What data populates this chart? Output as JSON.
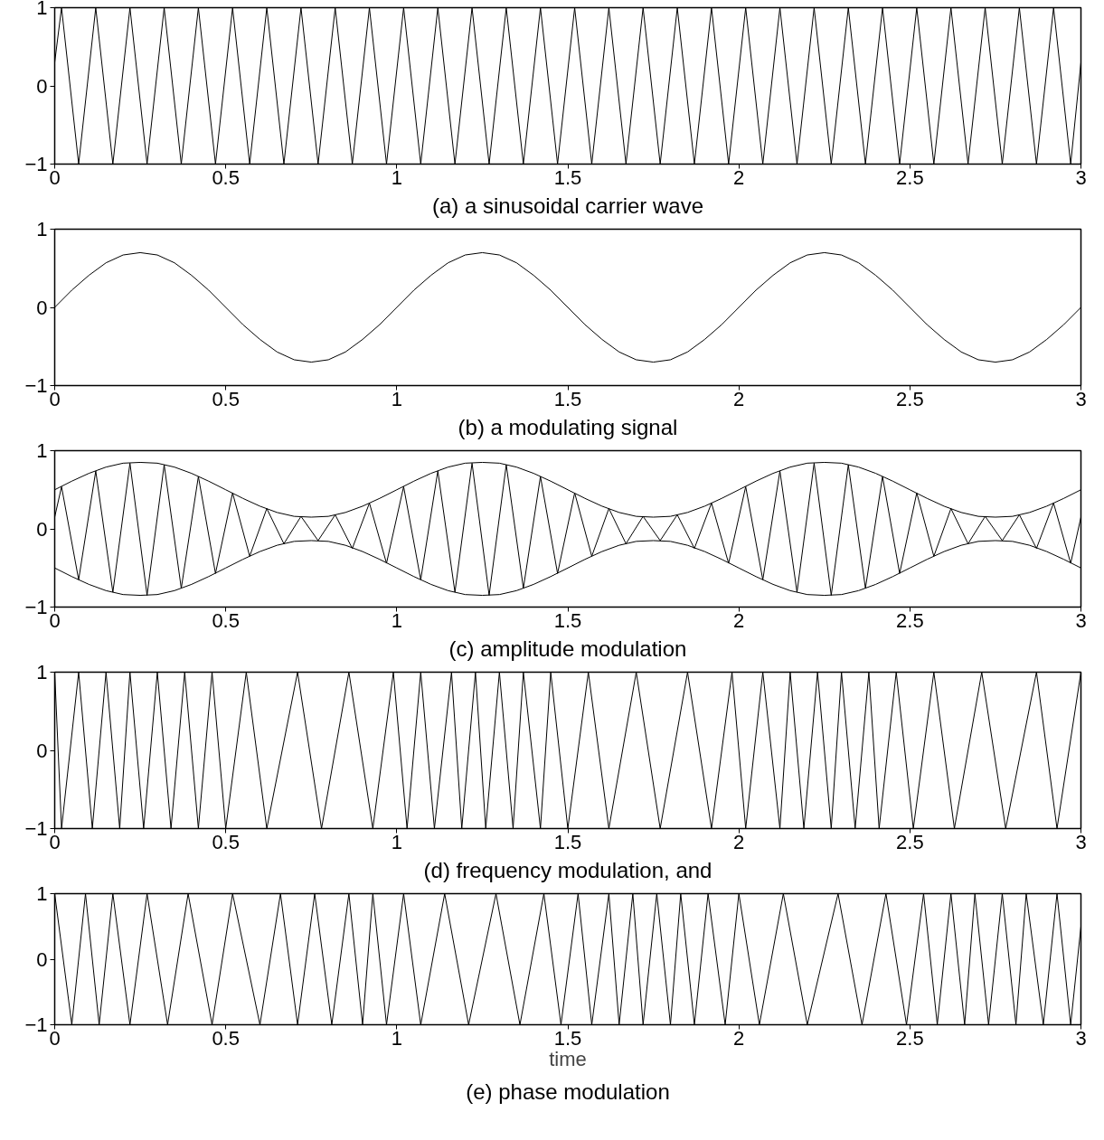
{
  "chart_data": [
    {
      "type": "line",
      "title": "(a) a sinusoidal carrier wave",
      "xlim": [
        0,
        3
      ],
      "xticks": [
        0,
        0.5,
        1,
        1.5,
        2,
        2.5,
        3
      ],
      "ylim": [
        -1,
        1
      ],
      "yticks": [
        -1,
        0,
        1
      ],
      "series": [
        {
          "color": "#000000",
          "x": [
            0,
            0.02,
            0.07,
            0.12,
            0.17,
            0.22,
            0.27,
            0.32,
            0.37,
            0.42,
            0.47,
            0.52,
            0.57,
            0.62,
            0.67,
            0.72,
            0.77,
            0.82,
            0.87,
            0.92,
            0.97,
            1.02,
            1.07,
            1.12,
            1.17,
            1.22,
            1.27,
            1.32,
            1.37,
            1.42,
            1.47,
            1.52,
            1.57,
            1.62,
            1.67,
            1.72,
            1.77,
            1.82,
            1.87,
            1.92,
            1.97,
            2.02,
            2.07,
            2.12,
            2.17,
            2.22,
            2.27,
            2.32,
            2.37,
            2.42,
            2.47,
            2.52,
            2.57,
            2.62,
            2.67,
            2.72,
            2.77,
            2.82,
            2.87,
            2.92,
            2.97,
            3
          ],
          "values": [
            0.3,
            1,
            -1,
            1,
            -1,
            1,
            -1,
            1,
            -1,
            1,
            -1,
            1,
            -1,
            1,
            -1,
            1,
            -1,
            1,
            -1,
            1,
            -1,
            1,
            -1,
            1,
            -1,
            1,
            -1,
            1,
            -1,
            1,
            -1,
            1,
            -1,
            1,
            -1,
            1,
            -1,
            1,
            -1,
            1,
            -1,
            1,
            -1,
            1,
            -1,
            1,
            -1,
            1,
            -1,
            1,
            -1,
            1,
            -1,
            1,
            -1,
            1,
            -1,
            1,
            -1,
            1,
            -1,
            0.3
          ]
        }
      ]
    },
    {
      "type": "line",
      "title": "(b) a modulating signal",
      "xlim": [
        0,
        3
      ],
      "xticks": [
        0,
        0.5,
        1,
        1.5,
        2,
        2.5,
        3
      ],
      "ylim": [
        -1,
        1
      ],
      "yticks": [
        -1,
        0,
        1
      ],
      "series": [
        {
          "color": "#000000",
          "x": [
            0,
            0.05,
            0.1,
            0.15,
            0.2,
            0.25,
            0.3,
            0.35,
            0.4,
            0.45,
            0.5,
            0.55,
            0.6,
            0.65,
            0.7,
            0.75,
            0.8,
            0.85,
            0.9,
            0.95,
            1,
            1.05,
            1.1,
            1.15,
            1.2,
            1.25,
            1.3,
            1.35,
            1.4,
            1.45,
            1.5,
            1.55,
            1.6,
            1.65,
            1.7,
            1.75,
            1.8,
            1.85,
            1.9,
            1.95,
            2,
            2.05,
            2.1,
            2.15,
            2.2,
            2.25,
            2.3,
            2.35,
            2.4,
            2.45,
            2.5,
            2.55,
            2.6,
            2.65,
            2.7,
            2.75,
            2.8,
            2.85,
            2.9,
            2.95,
            3
          ],
          "values": [
            0,
            0.22,
            0.41,
            0.57,
            0.67,
            0.7,
            0.67,
            0.57,
            0.41,
            0.22,
            0,
            -0.22,
            -0.41,
            -0.57,
            -0.67,
            -0.7,
            -0.67,
            -0.57,
            -0.41,
            -0.22,
            0,
            0.22,
            0.41,
            0.57,
            0.67,
            0.7,
            0.67,
            0.57,
            0.41,
            0.22,
            0,
            -0.22,
            -0.41,
            -0.57,
            -0.67,
            -0.7,
            -0.67,
            -0.57,
            -0.41,
            -0.22,
            0,
            0.22,
            0.41,
            0.57,
            0.67,
            0.7,
            0.67,
            0.57,
            0.41,
            0.22,
            0,
            -0.22,
            -0.41,
            -0.57,
            -0.67,
            -0.7,
            -0.67,
            -0.57,
            -0.41,
            -0.22,
            0
          ]
        }
      ]
    },
    {
      "type": "line",
      "title": "(c) amplitude modulation",
      "xlim": [
        0,
        3
      ],
      "xticks": [
        0,
        0.5,
        1,
        1.5,
        2,
        2.5,
        3
      ],
      "ylim": [
        -1,
        1
      ],
      "yticks": [
        -1,
        0,
        1
      ],
      "series": [
        {
          "color": "#000000",
          "x": [
            0,
            0.05,
            0.1,
            0.15,
            0.2,
            0.25,
            0.3,
            0.35,
            0.4,
            0.45,
            0.5,
            0.55,
            0.6,
            0.65,
            0.7,
            0.75,
            0.8,
            0.85,
            0.9,
            0.95,
            1,
            1.05,
            1.1,
            1.15,
            1.2,
            1.25,
            1.3,
            1.35,
            1.4,
            1.45,
            1.5,
            1.55,
            1.6,
            1.65,
            1.7,
            1.75,
            1.8,
            1.85,
            1.9,
            1.95,
            2,
            2.05,
            2.1,
            2.15,
            2.2,
            2.25,
            2.3,
            2.35,
            2.4,
            2.45,
            2.5,
            2.55,
            2.6,
            2.65,
            2.7,
            2.75,
            2.8,
            2.85,
            2.9,
            2.95,
            3
          ],
          "values": [
            0.5,
            0.61,
            0.71,
            0.79,
            0.84,
            0.85,
            0.84,
            0.79,
            0.71,
            0.61,
            0.5,
            0.39,
            0.29,
            0.21,
            0.16,
            0.15,
            0.16,
            0.21,
            0.29,
            0.39,
            0.5,
            0.61,
            0.71,
            0.79,
            0.84,
            0.85,
            0.84,
            0.79,
            0.71,
            0.61,
            0.5,
            0.39,
            0.29,
            0.21,
            0.16,
            0.15,
            0.16,
            0.21,
            0.29,
            0.39,
            0.5,
            0.61,
            0.71,
            0.79,
            0.84,
            0.85,
            0.84,
            0.79,
            0.71,
            0.61,
            0.5,
            0.39,
            0.29,
            0.21,
            0.16,
            0.15,
            0.16,
            0.21,
            0.29,
            0.39,
            0.5
          ]
        },
        {
          "color": "#000000",
          "x": [
            0,
            0.05,
            0.1,
            0.15,
            0.2,
            0.25,
            0.3,
            0.35,
            0.4,
            0.45,
            0.5,
            0.55,
            0.6,
            0.65,
            0.7,
            0.75,
            0.8,
            0.85,
            0.9,
            0.95,
            1,
            1.05,
            1.1,
            1.15,
            1.2,
            1.25,
            1.3,
            1.35,
            1.4,
            1.45,
            1.5,
            1.55,
            1.6,
            1.65,
            1.7,
            1.75,
            1.8,
            1.85,
            1.9,
            1.95,
            2,
            2.05,
            2.1,
            2.15,
            2.2,
            2.25,
            2.3,
            2.35,
            2.4,
            2.45,
            2.5,
            2.55,
            2.6,
            2.65,
            2.7,
            2.75,
            2.8,
            2.85,
            2.9,
            2.95,
            3
          ],
          "values": [
            -0.5,
            -0.61,
            -0.71,
            -0.79,
            -0.84,
            -0.85,
            -0.84,
            -0.79,
            -0.71,
            -0.61,
            -0.5,
            -0.39,
            -0.29,
            -0.21,
            -0.16,
            -0.15,
            -0.16,
            -0.21,
            -0.29,
            -0.39,
            -0.5,
            -0.61,
            -0.71,
            -0.79,
            -0.84,
            -0.85,
            -0.84,
            -0.79,
            -0.71,
            -0.61,
            -0.5,
            -0.39,
            -0.29,
            -0.21,
            -0.16,
            -0.15,
            -0.16,
            -0.21,
            -0.29,
            -0.39,
            -0.5,
            -0.61,
            -0.71,
            -0.79,
            -0.84,
            -0.85,
            -0.84,
            -0.79,
            -0.71,
            -0.61,
            -0.5,
            -0.39,
            -0.29,
            -0.21,
            -0.16,
            -0.15,
            -0.16,
            -0.21,
            -0.29,
            -0.39,
            -0.5
          ]
        },
        {
          "color": "#000000",
          "x": [
            0,
            0.02,
            0.07,
            0.12,
            0.17,
            0.22,
            0.27,
            0.32,
            0.37,
            0.42,
            0.47,
            0.52,
            0.57,
            0.62,
            0.67,
            0.72,
            0.77,
            0.82,
            0.87,
            0.92,
            0.97,
            1.02,
            1.07,
            1.12,
            1.17,
            1.22,
            1.27,
            1.32,
            1.37,
            1.42,
            1.47,
            1.52,
            1.57,
            1.62,
            1.67,
            1.72,
            1.77,
            1.82,
            1.87,
            1.92,
            1.97,
            2.02,
            2.07,
            2.12,
            2.17,
            2.22,
            2.27,
            2.32,
            2.37,
            2.42,
            2.47,
            2.52,
            2.57,
            2.62,
            2.67,
            2.72,
            2.77,
            2.82,
            2.87,
            2.92,
            2.97,
            3
          ],
          "values": [
            0.15,
            0.54,
            -0.65,
            0.74,
            -0.81,
            0.84,
            -0.85,
            0.82,
            -0.76,
            0.67,
            -0.57,
            0.46,
            -0.35,
            0.26,
            -0.19,
            0.16,
            -0.15,
            0.18,
            -0.25,
            0.33,
            -0.44,
            0.54,
            -0.65,
            0.74,
            -0.81,
            0.84,
            -0.85,
            0.82,
            -0.76,
            0.67,
            -0.57,
            0.46,
            -0.35,
            0.26,
            -0.19,
            0.16,
            -0.15,
            0.18,
            -0.25,
            0.33,
            -0.44,
            0.54,
            -0.65,
            0.74,
            -0.81,
            0.84,
            -0.85,
            0.82,
            -0.76,
            0.67,
            -0.57,
            0.46,
            -0.35,
            0.26,
            -0.19,
            0.16,
            -0.15,
            0.18,
            -0.25,
            0.33,
            -0.44,
            0.15
          ]
        }
      ]
    },
    {
      "type": "line",
      "title": "(d) frequency modulation, and",
      "xlim": [
        0,
        3
      ],
      "xticks": [
        0,
        0.5,
        1,
        1.5,
        2,
        2.5,
        3
      ],
      "ylim": [
        -1,
        1
      ],
      "yticks": [
        -1,
        0,
        1
      ],
      "series": [
        {
          "color": "#000000",
          "x": [
            0,
            0.02,
            0.07,
            0.11,
            0.15,
            0.19,
            0.22,
            0.26,
            0.3,
            0.34,
            0.38,
            0.42,
            0.46,
            0.5,
            0.56,
            0.62,
            0.71,
            0.78,
            0.86,
            0.93,
            0.99,
            1.03,
            1.07,
            1.11,
            1.16,
            1.19,
            1.23,
            1.26,
            1.3,
            1.34,
            1.37,
            1.42,
            1.45,
            1.5,
            1.56,
            1.62,
            1.7,
            1.77,
            1.85,
            1.92,
            1.98,
            2.02,
            2.07,
            2.12,
            2.15,
            2.19,
            2.23,
            2.27,
            2.3,
            2.34,
            2.38,
            2.41,
            2.46,
            2.51,
            2.57,
            2.63,
            2.71,
            2.78,
            2.87,
            2.93,
            3
          ],
          "values": [
            1,
            -1,
            1,
            -1,
            1,
            -1,
            1,
            -1,
            1,
            -1,
            1,
            -1,
            1,
            -1,
            1,
            -1,
            1,
            -1,
            1,
            -1,
            1,
            -1,
            1,
            -1,
            1,
            -1,
            1,
            -1,
            1,
            -1,
            1,
            -1,
            1,
            -1,
            1,
            -1,
            1,
            -1,
            1,
            -1,
            1,
            -1,
            1,
            -1,
            1,
            -1,
            1,
            -1,
            1,
            -1,
            1,
            -1,
            1,
            -1,
            1,
            -1,
            1,
            -1,
            1,
            -1,
            1
          ]
        }
      ]
    },
    {
      "type": "line",
      "title": "(e) phase modulation",
      "xlabel": "time",
      "xlim": [
        0,
        3
      ],
      "xticks": [
        0,
        0.5,
        1,
        1.5,
        2,
        2.5,
        3
      ],
      "ylim": [
        -1,
        1
      ],
      "yticks": [
        -1,
        0,
        1
      ],
      "series": [
        {
          "color": "#000000",
          "x": [
            0,
            0.05,
            0.09,
            0.13,
            0.17,
            0.22,
            0.27,
            0.33,
            0.39,
            0.46,
            0.52,
            0.6,
            0.66,
            0.71,
            0.76,
            0.81,
            0.86,
            0.9,
            0.93,
            0.97,
            1.02,
            1.07,
            1.14,
            1.21,
            1.29,
            1.36,
            1.43,
            1.48,
            1.53,
            1.57,
            1.62,
            1.65,
            1.69,
            1.72,
            1.76,
            1.8,
            1.83,
            1.87,
            1.91,
            1.96,
            2,
            2.06,
            2.13,
            2.2,
            2.29,
            2.36,
            2.43,
            2.49,
            2.54,
            2.58,
            2.62,
            2.66,
            2.69,
            2.73,
            2.77,
            2.81,
            2.84,
            2.89,
            2.93,
            2.97,
            3
          ],
          "values": [
            1,
            -1,
            1,
            -1,
            1,
            -1,
            1,
            -1,
            1,
            -1,
            1,
            -1,
            1,
            -1,
            1,
            -1,
            1,
            -1,
            1,
            -1,
            1,
            -1,
            1,
            -1,
            1,
            -1,
            1,
            -1,
            1,
            -1,
            1,
            -1,
            1,
            -1,
            1,
            -1,
            1,
            -1,
            1,
            -1,
            1,
            -1,
            1,
            -1,
            1,
            -1,
            1,
            -1,
            1,
            -1,
            1,
            -1,
            1,
            -1,
            1,
            -1,
            1,
            -1,
            1,
            -1,
            0.5
          ]
        }
      ]
    }
  ]
}
